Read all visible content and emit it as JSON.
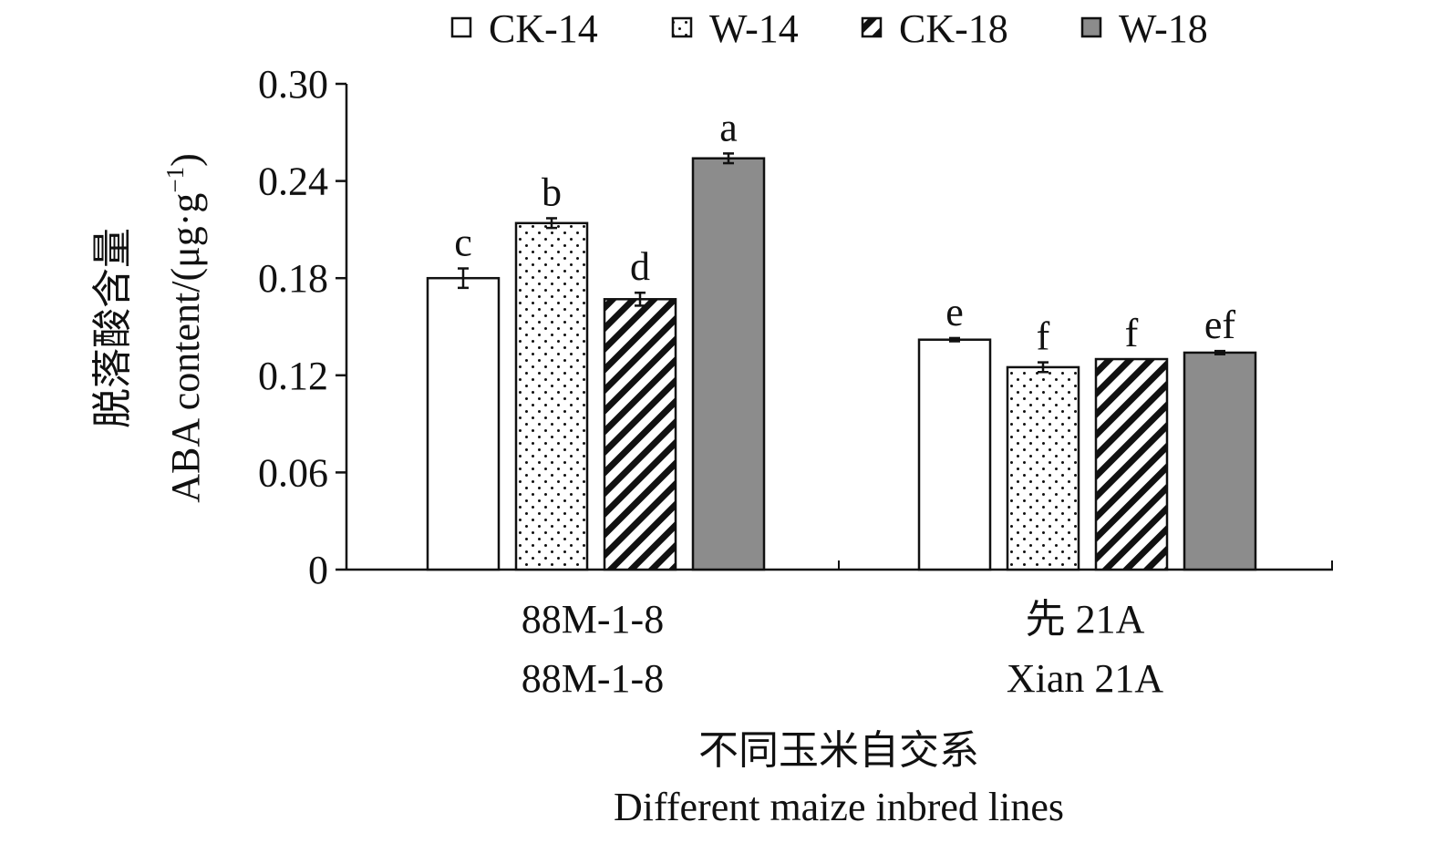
{
  "chart_data": {
    "type": "bar",
    "categories": [
      {
        "line1": "88M-1-8",
        "line2": "88M-1-8"
      },
      {
        "line1": "先 21A",
        "line2": "Xian 21A"
      }
    ],
    "series": [
      {
        "name": "CK-14",
        "pattern": "white",
        "values": [
          0.18,
          0.142
        ],
        "errors": [
          0.006,
          0.001
        ],
        "labels": [
          "c",
          "e"
        ]
      },
      {
        "name": "W-14",
        "pattern": "dots",
        "values": [
          0.214,
          0.125
        ],
        "errors": [
          0.003,
          0.003
        ],
        "labels": [
          "b",
          "f"
        ]
      },
      {
        "name": "CK-18",
        "pattern": "hatch",
        "values": [
          0.167,
          0.13
        ],
        "errors": [
          0.004,
          0.0
        ],
        "labels": [
          "d",
          "f"
        ]
      },
      {
        "name": "W-18",
        "pattern": "gray",
        "values": [
          0.254,
          0.134
        ],
        "errors": [
          0.003,
          0.001
        ],
        "labels": [
          "a",
          "ef"
        ]
      }
    ],
    "ylabel_cn": "脱落酸含量",
    "ylabel_en": "ABA content/(μg·g",
    "ylabel_sup": "−1",
    "ylabel_close": ")",
    "xlabel_cn": "不同玉米自交系",
    "xlabel_en": "Different maize inbred lines",
    "ylim": [
      0,
      0.3
    ],
    "yticks": [
      "0",
      "0.06",
      "0.12",
      "0.18",
      "0.24",
      "0.30"
    ],
    "legend_position": "top",
    "grid": false,
    "colors": {
      "axis": "#111111",
      "gray_fill": "#8c8c8c",
      "pattern_ink": "#111111",
      "background": "#ffffff"
    }
  }
}
